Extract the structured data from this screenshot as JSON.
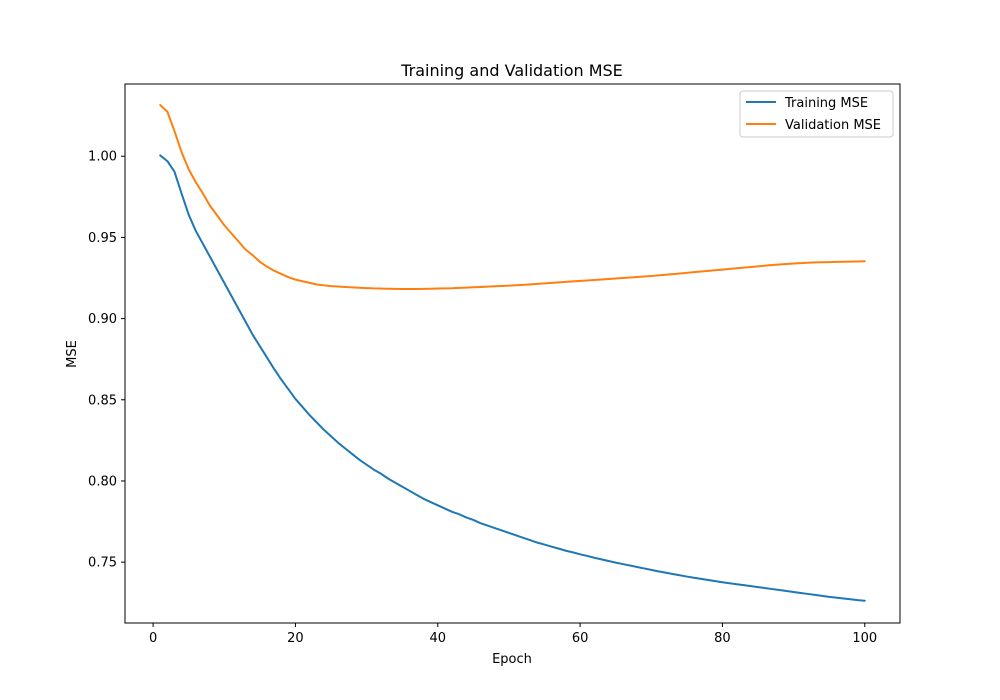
{
  "chart_data": {
    "type": "line",
    "title": "Training and Validation MSE",
    "xlabel": "Epoch",
    "ylabel": "MSE",
    "xlim": [
      -3.95,
      104.95
    ],
    "ylim": [
      0.7125,
      1.0445
    ],
    "xticks": [
      0,
      20,
      40,
      60,
      80,
      100
    ],
    "xtick_labels": [
      "0",
      "20",
      "40",
      "60",
      "80",
      "100"
    ],
    "yticks": [
      0.75,
      0.8,
      0.85,
      0.9,
      0.95,
      1.0
    ],
    "ytick_labels": [
      "0.75",
      "0.80",
      "0.85",
      "0.90",
      "0.95",
      "1.00"
    ],
    "grid": false,
    "legend_position": "top-right",
    "x": [
      1,
      2,
      3,
      4,
      5,
      6,
      7,
      8,
      9,
      10,
      11,
      12,
      13,
      14,
      15,
      16,
      17,
      18,
      19,
      20,
      21,
      22,
      23,
      24,
      25,
      26,
      27,
      28,
      29,
      30,
      31,
      32,
      33,
      34,
      35,
      36,
      37,
      38,
      39,
      40,
      41,
      42,
      43,
      44,
      45,
      46,
      47,
      48,
      49,
      50,
      51,
      52,
      53,
      54,
      55,
      56,
      57,
      58,
      59,
      60,
      61,
      62,
      63,
      64,
      65,
      66,
      67,
      68,
      69,
      70,
      71,
      72,
      73,
      74,
      75,
      76,
      77,
      78,
      79,
      80,
      81,
      82,
      83,
      84,
      85,
      86,
      87,
      88,
      89,
      90,
      91,
      92,
      93,
      94,
      95,
      96,
      97,
      98,
      99,
      100
    ],
    "series": [
      {
        "name": "Training MSE",
        "color": "#1f77b4",
        "values": [
          1.0005,
          0.997,
          0.9905,
          0.977,
          0.964,
          0.954,
          0.946,
          0.938,
          0.93,
          0.922,
          0.914,
          0.906,
          0.898,
          0.89,
          0.883,
          0.876,
          0.869,
          0.8625,
          0.8565,
          0.8505,
          0.8455,
          0.8405,
          0.836,
          0.8315,
          0.8275,
          0.8235,
          0.82,
          0.8165,
          0.813,
          0.81,
          0.807,
          0.8045,
          0.8015,
          0.799,
          0.7965,
          0.794,
          0.7915,
          0.789,
          0.787,
          0.785,
          0.783,
          0.781,
          0.7795,
          0.7775,
          0.776,
          0.774,
          0.7725,
          0.771,
          0.7695,
          0.768,
          0.7665,
          0.765,
          0.7635,
          0.762,
          0.7608,
          0.7595,
          0.7583,
          0.757,
          0.756,
          0.7548,
          0.7538,
          0.7527,
          0.7517,
          0.7507,
          0.7497,
          0.7488,
          0.7479,
          0.747,
          0.7461,
          0.7452,
          0.7443,
          0.7435,
          0.7427,
          0.7419,
          0.7411,
          0.7404,
          0.7397,
          0.739,
          0.7383,
          0.7376,
          0.737,
          0.7364,
          0.7358,
          0.7352,
          0.7346,
          0.734,
          0.7334,
          0.7328,
          0.7322,
          0.7316,
          0.731,
          0.7304,
          0.7298,
          0.7292,
          0.7286,
          0.7281,
          0.7276,
          0.7271,
          0.7266,
          0.7262
        ]
      },
      {
        "name": "Validation MSE",
        "color": "#ff7f0e",
        "values": [
          1.0315,
          1.0275,
          1.0155,
          1.0025,
          0.992,
          0.984,
          0.977,
          0.9695,
          0.9635,
          0.9575,
          0.9525,
          0.9475,
          0.9425,
          0.939,
          0.935,
          0.932,
          0.9295,
          0.9275,
          0.9255,
          0.924,
          0.923,
          0.922,
          0.921,
          0.9205,
          0.92,
          0.9198,
          0.9195,
          0.9192,
          0.919,
          0.9188,
          0.9186,
          0.9185,
          0.9184,
          0.9183,
          0.9182,
          0.9182,
          0.9182,
          0.9183,
          0.9184,
          0.9185,
          0.9186,
          0.9187,
          0.9189,
          0.9191,
          0.9193,
          0.9195,
          0.9197,
          0.9199,
          0.9201,
          0.9203,
          0.9205,
          0.9208,
          0.9211,
          0.9214,
          0.9217,
          0.922,
          0.9223,
          0.9226,
          0.9229,
          0.9232,
          0.9235,
          0.9238,
          0.9241,
          0.9244,
          0.9247,
          0.925,
          0.9253,
          0.9256,
          0.9259,
          0.9262,
          0.9266,
          0.927,
          0.9274,
          0.9278,
          0.9282,
          0.9286,
          0.929,
          0.9294,
          0.9298,
          0.9302,
          0.9306,
          0.931,
          0.9314,
          0.9318,
          0.9322,
          0.9326,
          0.933,
          0.9333,
          0.9336,
          0.9339,
          0.9342,
          0.9344,
          0.9346,
          0.9347,
          0.9348,
          0.9349,
          0.935,
          0.9351,
          0.9352,
          0.9353
        ]
      }
    ]
  }
}
